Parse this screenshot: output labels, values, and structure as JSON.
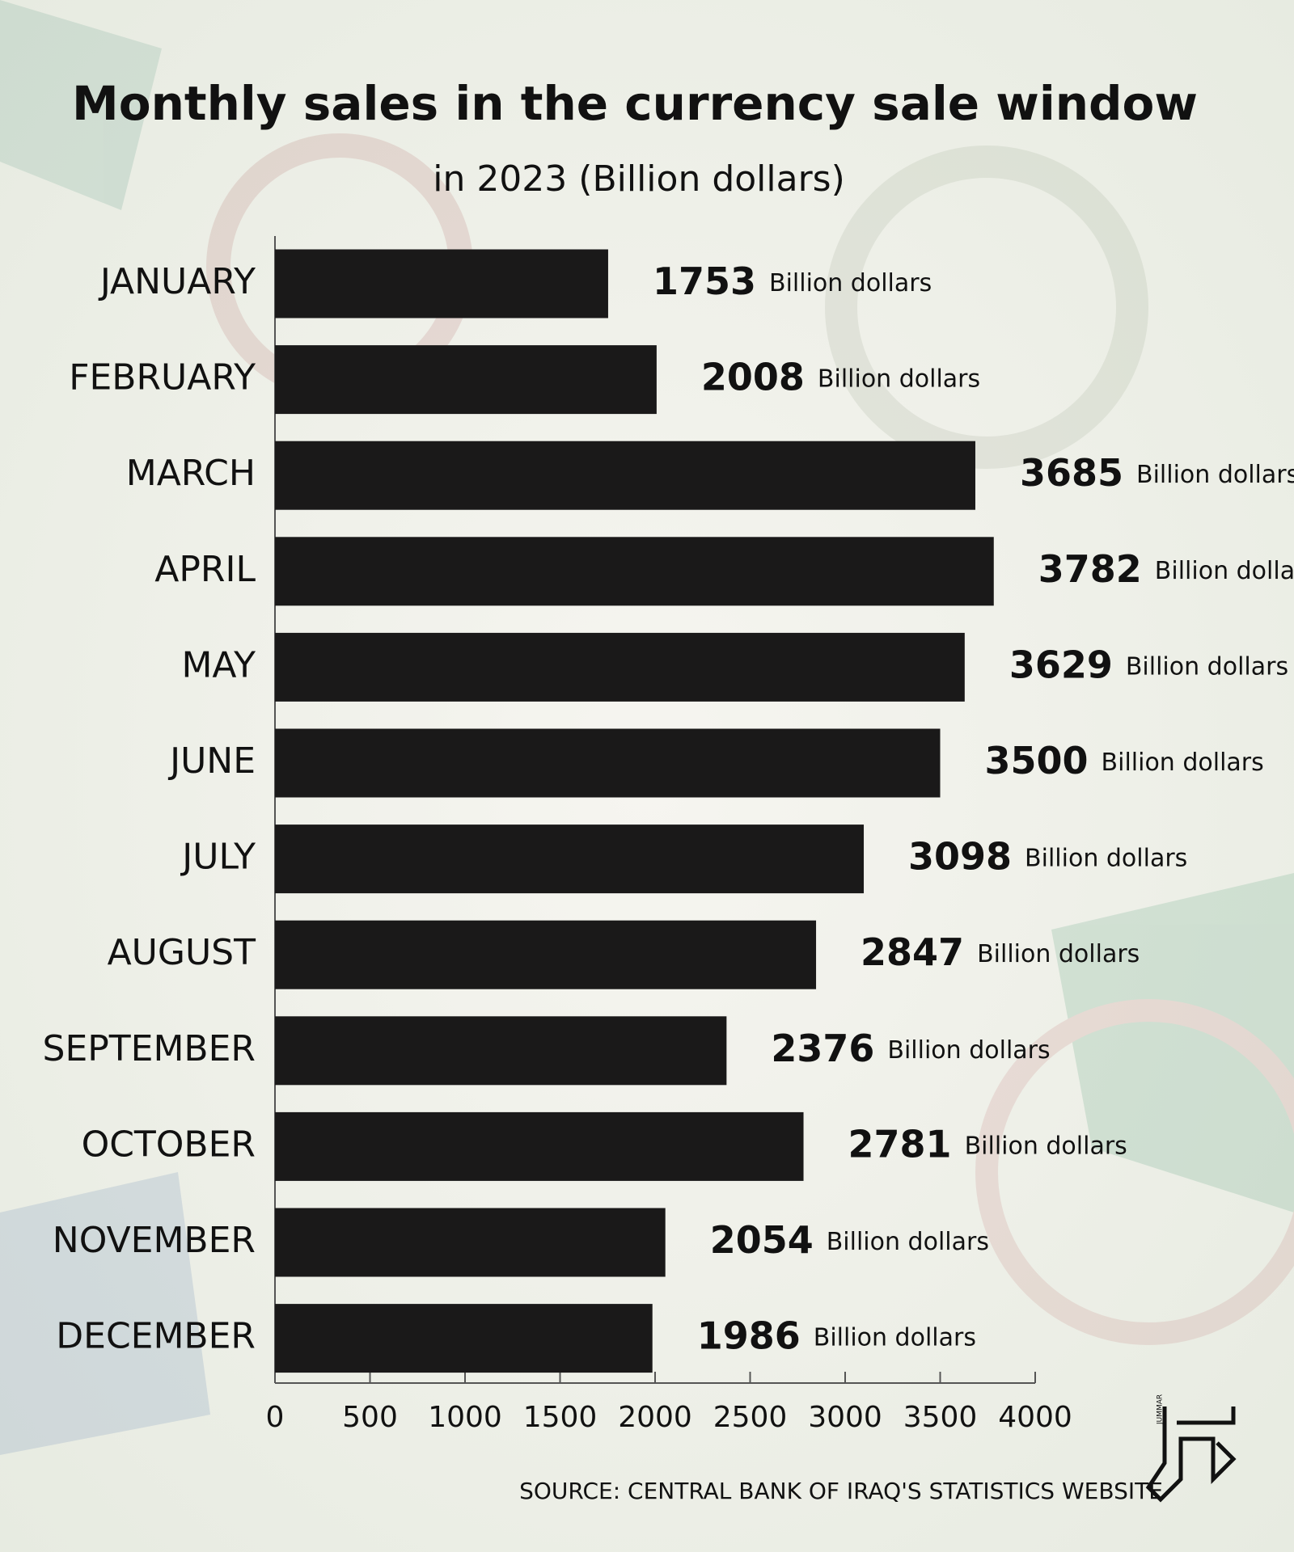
{
  "chart_data": {
    "type": "bar",
    "orientation": "horizontal",
    "title": "Monthly sales in the currency sale window",
    "subtitle": "in 2023 (Billion dollars)",
    "categories": [
      "JANUARY",
      "FEBRUARY",
      "MARCH",
      "APRIL",
      "MAY",
      "JUNE",
      "JULY",
      "AUGUST",
      "SEPTEMBER",
      "OCTOBER",
      "NOVEMBER",
      "DECEMBER"
    ],
    "values": [
      1753,
      2008,
      3685,
      3782,
      3629,
      3500,
      3098,
      2847,
      2376,
      2781,
      2054,
      1986
    ],
    "value_unit": "Billion dollars",
    "color": "#1a1919",
    "xlim": [
      0,
      4000
    ],
    "xticks": [
      0,
      500,
      1000,
      1500,
      2000,
      2500,
      3000,
      3500,
      4000
    ],
    "grid": false,
    "source": "SOURCE: CENTRAL BANK OF IRAQ'S STATISTICS WEBSITE",
    "logo": "JUMMAR"
  }
}
